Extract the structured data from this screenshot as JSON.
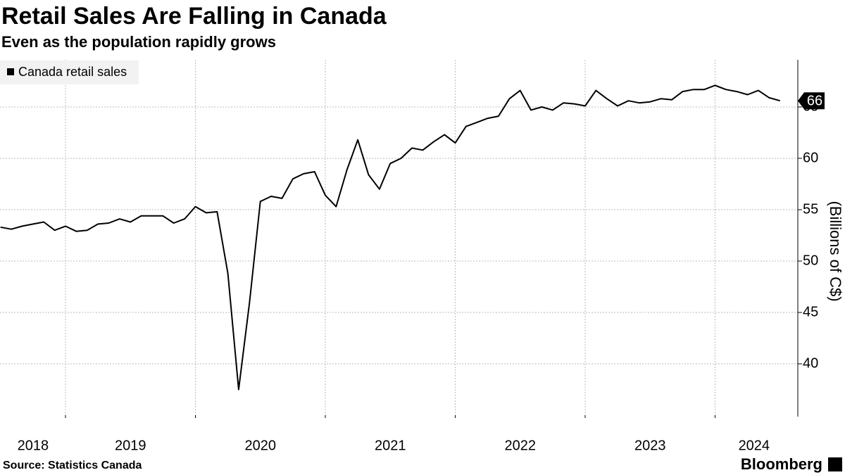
{
  "chart_data": {
    "type": "line",
    "title": "Retail Sales Are Falling in Canada",
    "subtitle": "Even as the population rapidly grows",
    "y_label": "(Billions of C$)",
    "source": "Source: Statistics Canada",
    "brand": "Bloomberg",
    "x": [
      2018.5,
      2018.583,
      2018.667,
      2018.75,
      2018.833,
      2018.917,
      2019,
      2019.083,
      2019.167,
      2019.25,
      2019.333,
      2019.417,
      2019.5,
      2019.583,
      2019.667,
      2019.75,
      2019.833,
      2019.917,
      2020,
      2020.083,
      2020.167,
      2020.25,
      2020.333,
      2020.417,
      2020.5,
      2020.583,
      2020.667,
      2020.75,
      2020.833,
      2020.917,
      2021,
      2021.083,
      2021.167,
      2021.25,
      2021.333,
      2021.417,
      2021.5,
      2021.583,
      2021.667,
      2021.75,
      2021.833,
      2021.917,
      2022,
      2022.083,
      2022.167,
      2022.25,
      2022.333,
      2022.417,
      2022.5,
      2022.583,
      2022.667,
      2022.75,
      2022.833,
      2022.917,
      2023,
      2023.083,
      2023.167,
      2023.25,
      2023.333,
      2023.417,
      2023.5,
      2023.583,
      2023.667,
      2023.75,
      2023.833,
      2023.917,
      2024,
      2024.083,
      2024.167,
      2024.25,
      2024.333,
      2024.417,
      2024.5
    ],
    "series": [
      {
        "name": "Canada retail sales",
        "color": "#000000",
        "values": [
          53.3,
          53.1,
          53.4,
          53.6,
          53.8,
          53.0,
          53.4,
          52.9,
          53.0,
          53.6,
          53.7,
          54.1,
          53.8,
          54.4,
          54.4,
          54.4,
          53.7,
          54.1,
          55.3,
          54.7,
          54.8,
          48.8,
          37.5,
          46.0,
          55.8,
          56.3,
          56.1,
          58.0,
          58.5,
          58.7,
          56.4,
          55.3,
          58.9,
          61.8,
          58.4,
          57.0,
          59.5,
          60.0,
          61.0,
          60.8,
          61.6,
          62.3,
          61.5,
          63.1,
          63.5,
          63.9,
          64.1,
          65.8,
          66.6,
          64.7,
          65.0,
          64.7,
          65.4,
          65.3,
          65.1,
          66.6,
          65.8,
          65.1,
          65.6,
          65.4,
          65.5,
          65.8,
          65.7,
          66.5,
          66.7,
          66.7,
          67.1,
          66.7,
          66.5,
          66.2,
          66.6,
          65.9,
          65.6
        ],
        "last_label": "66"
      }
    ],
    "xlim": [
      2018.496,
      2024.637
    ],
    "xticks": [
      {
        "value": 2018.75,
        "label": "2018"
      },
      {
        "value": 2019.5,
        "label": "2019"
      },
      {
        "value": 2020.5,
        "label": "2020"
      },
      {
        "value": 2021.5,
        "label": "2021"
      },
      {
        "value": 2022.5,
        "label": "2022"
      },
      {
        "value": 2023.5,
        "label": "2023"
      },
      {
        "value": 2024.3,
        "label": "2024"
      }
    ],
    "xgrid": [
      2019,
      2020,
      2021,
      2022,
      2023,
      2024
    ],
    "ylim": [
      35,
      70
    ],
    "yticks": [
      40,
      45,
      50,
      55,
      60,
      65
    ],
    "grid": true,
    "legend": "top-left"
  }
}
